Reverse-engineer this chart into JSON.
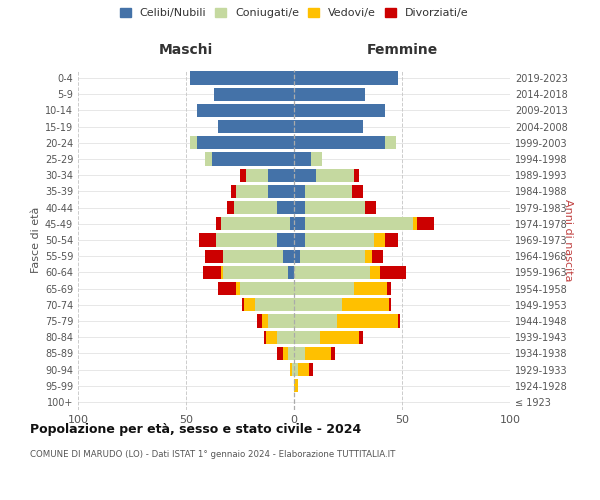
{
  "age_groups": [
    "100+",
    "95-99",
    "90-94",
    "85-89",
    "80-84",
    "75-79",
    "70-74",
    "65-69",
    "60-64",
    "55-59",
    "50-54",
    "45-49",
    "40-44",
    "35-39",
    "30-34",
    "25-29",
    "20-24",
    "15-19",
    "10-14",
    "5-9",
    "0-4"
  ],
  "birth_years": [
    "≤ 1923",
    "1924-1928",
    "1929-1933",
    "1934-1938",
    "1939-1943",
    "1944-1948",
    "1949-1953",
    "1954-1958",
    "1959-1963",
    "1964-1968",
    "1969-1973",
    "1974-1978",
    "1979-1983",
    "1984-1988",
    "1989-1993",
    "1994-1998",
    "1999-2003",
    "2004-2008",
    "2009-2013",
    "2014-2018",
    "2019-2023"
  ],
  "maschi": {
    "celibi": [
      0,
      0,
      0,
      0,
      0,
      0,
      0,
      0,
      3,
      5,
      8,
      2,
      8,
      12,
      12,
      38,
      45,
      35,
      45,
      37,
      48
    ],
    "coniugati": [
      0,
      0,
      1,
      3,
      8,
      12,
      18,
      25,
      30,
      28,
      28,
      32,
      20,
      15,
      10,
      3,
      3,
      0,
      0,
      0,
      0
    ],
    "vedovi": [
      0,
      0,
      1,
      2,
      5,
      3,
      5,
      2,
      1,
      0,
      0,
      0,
      0,
      0,
      0,
      0,
      0,
      0,
      0,
      0,
      0
    ],
    "divorziati": [
      0,
      0,
      0,
      3,
      1,
      2,
      1,
      8,
      8,
      8,
      8,
      2,
      3,
      2,
      3,
      0,
      0,
      0,
      0,
      0,
      0
    ]
  },
  "femmine": {
    "nubili": [
      0,
      0,
      0,
      0,
      0,
      0,
      0,
      0,
      0,
      3,
      5,
      5,
      5,
      5,
      10,
      8,
      42,
      32,
      42,
      33,
      48
    ],
    "coniugate": [
      0,
      0,
      2,
      5,
      12,
      20,
      22,
      28,
      35,
      30,
      32,
      50,
      28,
      22,
      18,
      5,
      5,
      0,
      0,
      0,
      0
    ],
    "vedove": [
      0,
      2,
      5,
      12,
      18,
      28,
      22,
      15,
      5,
      3,
      5,
      2,
      0,
      0,
      0,
      0,
      0,
      0,
      0,
      0,
      0
    ],
    "divorziate": [
      0,
      0,
      2,
      2,
      2,
      1,
      1,
      2,
      12,
      5,
      6,
      8,
      5,
      5,
      2,
      0,
      0,
      0,
      0,
      0,
      0
    ]
  },
  "colors": {
    "celibi": "#4472a8",
    "coniugati": "#c5d9a0",
    "vedovi": "#ffc000",
    "divorziati": "#cc0000"
  },
  "xlim": [
    -100,
    100
  ],
  "xticks": [
    -100,
    -50,
    0,
    50,
    100
  ],
  "xticklabels": [
    "100",
    "50",
    "0",
    "50",
    "100"
  ],
  "title": "Popolazione per età, sesso e stato civile - 2024",
  "subtitle": "COMUNE DI MARUDO (LO) - Dati ISTAT 1° gennaio 2024 - Elaborazione TUTTITALIA.IT",
  "ylabel_left": "Fasce di età",
  "ylabel_right": "Anni di nascita",
  "header_maschi": "Maschi",
  "header_femmine": "Femmine",
  "legend_labels": [
    "Celibi/Nubili",
    "Coniugati/e",
    "Vedovi/e",
    "Divorziati/e"
  ],
  "background_color": "#ffffff",
  "grid_color": "#cccccc"
}
